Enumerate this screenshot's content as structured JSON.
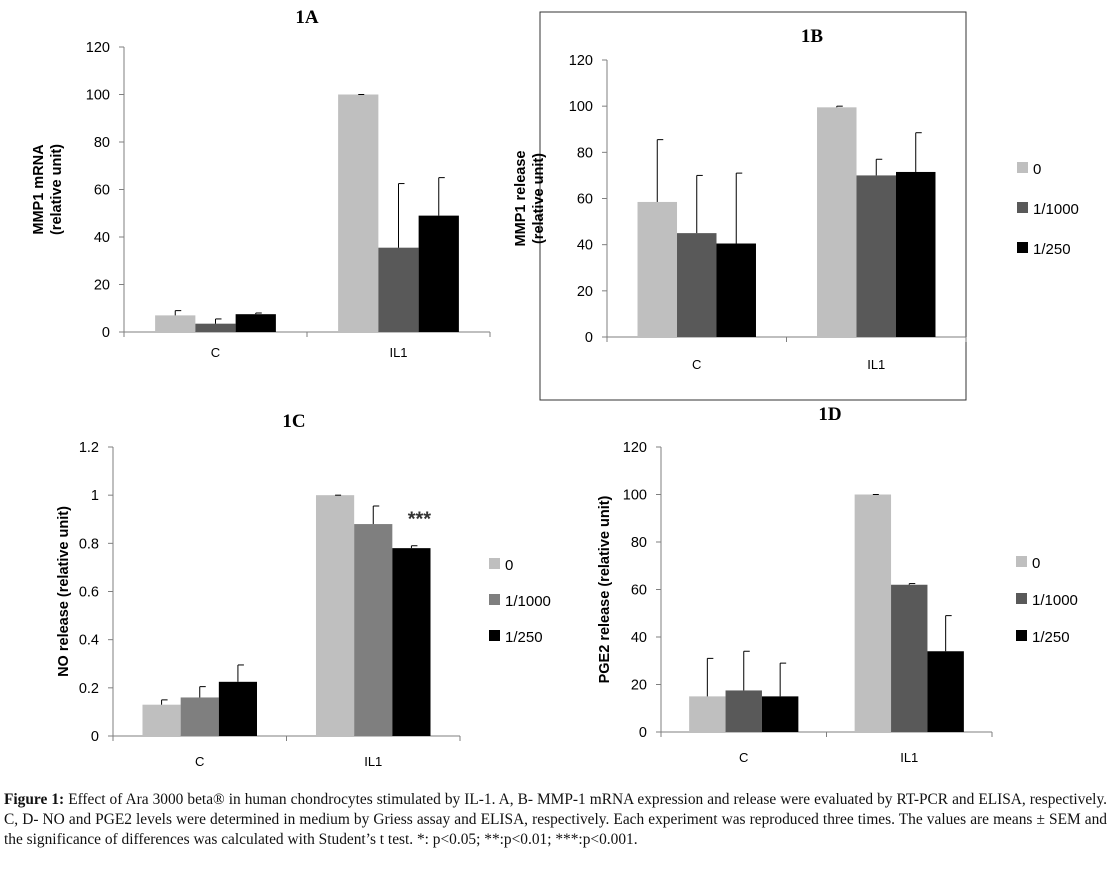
{
  "figure": {
    "caption_label": "Figure 1:",
    "caption_text": "Effect of Ara 3000 beta® in human chondrocytes stimulated by IL-1. A, B- MMP-1 mRNA expression and release were evaluated by RT-PCR and ELISA, respectively. C, D- NO and PGE2 levels were determined in medium by Griess assay and ELISA, respectively. Each experiment was reproduced three times. The values are means ± SEM and the significance of differences was calculated with Student’s t test. *: p<0.05; **:p<0.01; ***:p<0.001."
  },
  "chart_data": [
    {
      "id": "1A",
      "type": "bar",
      "title": "1A",
      "ylabel": [
        "MMP1 mRNA",
        "(relative unit)"
      ],
      "ylabel_bold": true,
      "categories": [
        "C",
        "IL1"
      ],
      "ylim": [
        0,
        120
      ],
      "yticks": [
        0,
        20,
        40,
        60,
        80,
        100,
        120
      ],
      "series": [
        {
          "name": "0",
          "color": "#bfbfbf",
          "values": [
            7,
            100
          ],
          "errors": [
            2,
            0
          ]
        },
        {
          "name": "1/1000",
          "color": "#595959",
          "values": [
            3.5,
            35.5
          ],
          "errors": [
            2,
            27
          ]
        },
        {
          "name": "1/250",
          "color": "#000000",
          "values": [
            7.5,
            49
          ],
          "errors": [
            0.5,
            16
          ]
        }
      ],
      "annotations": [],
      "legend": null,
      "framed": false
    },
    {
      "id": "1B",
      "type": "bar",
      "title": "1B",
      "ylabel": [
        "MMP1 release",
        "(relative unit)"
      ],
      "ylabel_bold": true,
      "categories": [
        "C",
        "IL1"
      ],
      "ylim": [
        0,
        120
      ],
      "yticks": [
        0,
        20,
        40,
        60,
        80,
        100,
        120
      ],
      "series": [
        {
          "name": "0",
          "color": "#bfbfbf",
          "values": [
            58.5,
            99.5
          ],
          "errors": [
            27,
            0.5
          ]
        },
        {
          "name": "1/1000",
          "color": "#595959",
          "values": [
            45,
            70
          ],
          "errors": [
            25,
            7
          ]
        },
        {
          "name": "1/250",
          "color": "#000000",
          "values": [
            40.5,
            71.5
          ],
          "errors": [
            30.5,
            17
          ]
        }
      ],
      "annotations": [],
      "legend": {
        "placement": "right",
        "entries": [
          "0",
          "1/1000",
          "1/250"
        ]
      },
      "framed": true
    },
    {
      "id": "1C",
      "type": "bar",
      "title": "1C",
      "ylabel": [
        "NO release (relative unit)"
      ],
      "ylabel_bold": false,
      "categories": [
        "C",
        "IL1"
      ],
      "ylim": [
        0,
        1.2
      ],
      "yticks": [
        0,
        0.2,
        0.4,
        0.6,
        0.8,
        1,
        1.2
      ],
      "series": [
        {
          "name": "0",
          "color": "#bfbfbf",
          "values": [
            0.13,
            1.0
          ],
          "errors": [
            0.02,
            0.0
          ]
        },
        {
          "name": "1/1000",
          "color": "#7f7f7f",
          "values": [
            0.16,
            0.88
          ],
          "errors": [
            0.045,
            0.075
          ]
        },
        {
          "name": "1/250",
          "color": "#000000",
          "values": [
            0.225,
            0.78
          ],
          "errors": [
            0.07,
            0.01
          ]
        }
      ],
      "annotations": [
        {
          "text": "***",
          "series": 2,
          "category": 1
        }
      ],
      "legend": {
        "placement": "right",
        "entries": [
          "0",
          "1/1000",
          "1/250"
        ]
      },
      "framed": false
    },
    {
      "id": "1D",
      "type": "bar",
      "title": "1D",
      "ylabel": [
        "PGE2 release (relative unit)"
      ],
      "ylabel_bold": false,
      "categories": [
        "C",
        "IL1"
      ],
      "ylim": [
        0,
        120
      ],
      "yticks": [
        0,
        20,
        40,
        60,
        80,
        100,
        120
      ],
      "series": [
        {
          "name": "0",
          "color": "#bfbfbf",
          "values": [
            15,
            100
          ],
          "errors": [
            16,
            0
          ]
        },
        {
          "name": "1/1000",
          "color": "#595959",
          "values": [
            17.5,
            62
          ],
          "errors": [
            16.5,
            0.5
          ]
        },
        {
          "name": "1/250",
          "color": "#000000",
          "values": [
            15,
            34
          ],
          "errors": [
            14,
            15
          ]
        }
      ],
      "annotations": [],
      "legend": {
        "placement": "right",
        "entries": [
          "0",
          "1/1000",
          "1/250"
        ]
      },
      "framed": false
    }
  ]
}
